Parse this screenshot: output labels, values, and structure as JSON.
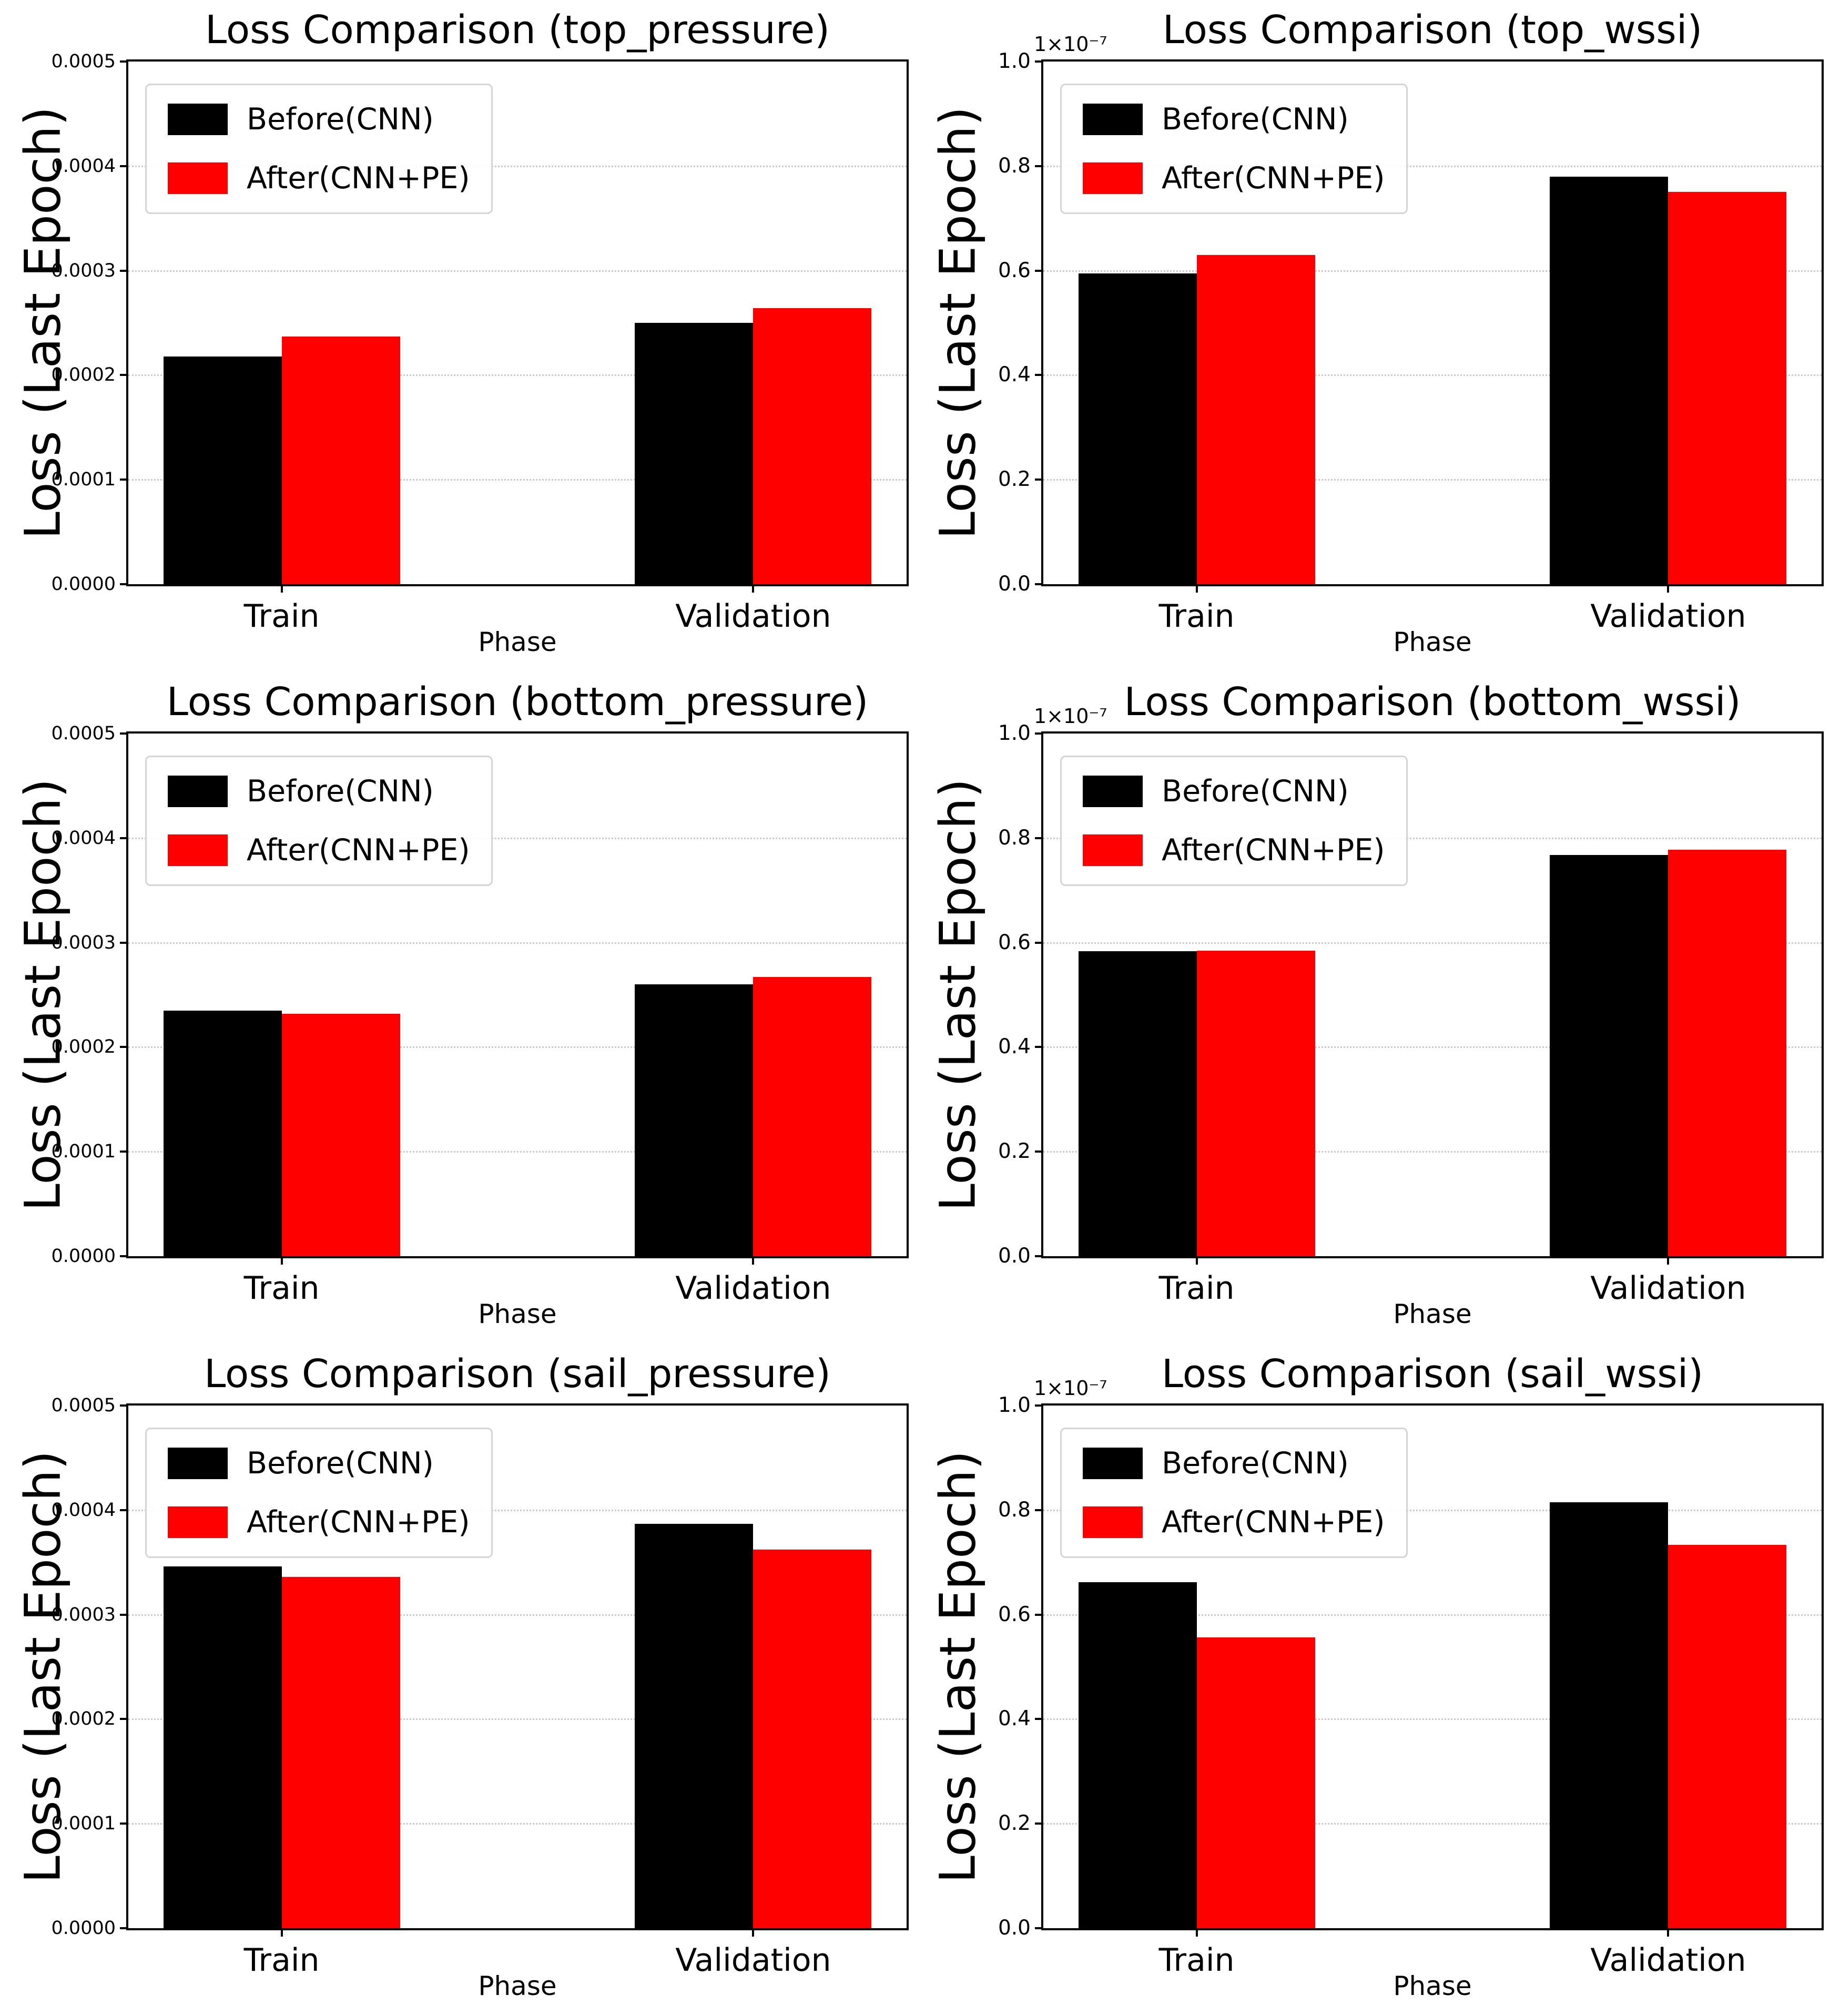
{
  "chart_data": [
    {
      "type": "bar",
      "title": "Loss Comparison (top_pressure)",
      "xlabel": "Phase",
      "ylabel": "Loss (Last Epoch)",
      "offset_label": "",
      "categories": [
        "Train",
        "Validation"
      ],
      "series": [
        {
          "name": "Before(CNN)",
          "color": "#000000",
          "values": [
            0.000218,
            0.00025
          ]
        },
        {
          "name": "After(CNN+PE)",
          "color": "#ff0000",
          "values": [
            0.000237,
            0.000264
          ]
        }
      ],
      "ylim": [
        0,
        0.0005
      ],
      "yticks": [
        "0.0000",
        "0.0001",
        "0.0002",
        "0.0003",
        "0.0004",
        "0.0005"
      ],
      "grid": "horizontal-dotted",
      "legend_position": "upper-left"
    },
    {
      "type": "bar",
      "title": "Loss Comparison (top_wssi)",
      "xlabel": "Phase",
      "ylabel": "Loss (Last Epoch)",
      "offset_label": "1×10⁻⁷",
      "categories": [
        "Train",
        "Validation"
      ],
      "series": [
        {
          "name": "Before(CNN)",
          "color": "#000000",
          "values": [
            0.595,
            0.78
          ]
        },
        {
          "name": "After(CNN+PE)",
          "color": "#ff0000",
          "values": [
            0.63,
            0.751
          ]
        }
      ],
      "ylim": [
        0,
        1.0
      ],
      "yticks": [
        "0.0",
        "0.2",
        "0.4",
        "0.6",
        "0.8",
        "1.0"
      ],
      "grid": "horizontal-dotted",
      "legend_position": "upper-left"
    },
    {
      "type": "bar",
      "title": "Loss Comparison (bottom_pressure)",
      "xlabel": "Phase",
      "ylabel": "Loss (Last Epoch)",
      "offset_label": "",
      "categories": [
        "Train",
        "Validation"
      ],
      "series": [
        {
          "name": "Before(CNN)",
          "color": "#000000",
          "values": [
            0.000235,
            0.00026
          ]
        },
        {
          "name": "After(CNN+PE)",
          "color": "#ff0000",
          "values": [
            0.000232,
            0.000267
          ]
        }
      ],
      "ylim": [
        0,
        0.0005
      ],
      "yticks": [
        "0.0000",
        "0.0001",
        "0.0002",
        "0.0003",
        "0.0004",
        "0.0005"
      ],
      "grid": "horizontal-dotted",
      "legend_position": "upper-left"
    },
    {
      "type": "bar",
      "title": "Loss Comparison (bottom_wssi)",
      "xlabel": "Phase",
      "ylabel": "Loss (Last Epoch)",
      "offset_label": "1×10⁻⁷",
      "categories": [
        "Train",
        "Validation"
      ],
      "series": [
        {
          "name": "Before(CNN)",
          "color": "#000000",
          "values": [
            0.583,
            0.768
          ]
        },
        {
          "name": "After(CNN+PE)",
          "color": "#ff0000",
          "values": [
            0.585,
            0.778
          ]
        }
      ],
      "ylim": [
        0,
        1.0
      ],
      "yticks": [
        "0.0",
        "0.2",
        "0.4",
        "0.6",
        "0.8",
        "1.0"
      ],
      "grid": "horizontal-dotted",
      "legend_position": "upper-left"
    },
    {
      "type": "bar",
      "title": "Loss Comparison (sail_pressure)",
      "xlabel": "Phase",
      "ylabel": "Loss (Last Epoch)",
      "offset_label": "",
      "categories": [
        "Train",
        "Validation"
      ],
      "series": [
        {
          "name": "Before(CNN)",
          "color": "#000000",
          "values": [
            0.000346,
            0.000387
          ]
        },
        {
          "name": "After(CNN+PE)",
          "color": "#ff0000",
          "values": [
            0.000336,
            0.000362
          ]
        }
      ],
      "ylim": [
        0,
        0.0005
      ],
      "yticks": [
        "0.0000",
        "0.0001",
        "0.0002",
        "0.0003",
        "0.0004",
        "0.0005"
      ],
      "grid": "horizontal-dotted",
      "legend_position": "upper-left"
    },
    {
      "type": "bar",
      "title": "Loss Comparison (sail_wssi)",
      "xlabel": "Phase",
      "ylabel": "Loss (Last Epoch)",
      "offset_label": "1×10⁻⁷",
      "categories": [
        "Train",
        "Validation"
      ],
      "series": [
        {
          "name": "Before(CNN)",
          "color": "#000000",
          "values": [
            0.662,
            0.815
          ]
        },
        {
          "name": "After(CNN+PE)",
          "color": "#ff0000",
          "values": [
            0.556,
            0.733
          ]
        }
      ],
      "ylim": [
        0,
        1.0
      ],
      "yticks": [
        "0.0",
        "0.2",
        "0.4",
        "0.6",
        "0.8",
        "1.0"
      ],
      "grid": "horizontal-dotted",
      "legend_position": "upper-left"
    }
  ]
}
